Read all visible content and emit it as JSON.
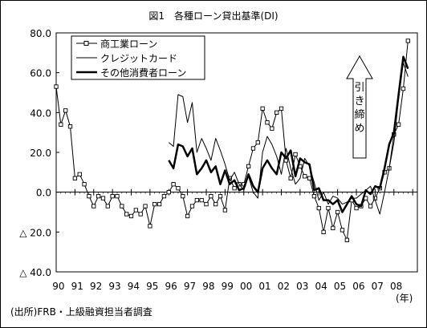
{
  "chart_data": {
    "type": "line",
    "title": "図1　各種ローン貸出基準(DI)",
    "source": "(出所)FRB・上級融資担当者調査",
    "x_unit_label": "(年)",
    "ylim": [
      -40,
      80
    ],
    "y_ticks": [
      80,
      60,
      40,
      20,
      0,
      -20,
      -40
    ],
    "y_tick_labels": [
      "80.0",
      "60.0",
      "40.0",
      "20.0",
      "0.0",
      "△ 20.0",
      "△ 40.0"
    ],
    "x_tick_labels": [
      "90",
      "91",
      "92",
      "93",
      "94",
      "95",
      "96",
      "97",
      "98",
      "99",
      "00",
      "01",
      "02",
      "03",
      "04",
      "05",
      "06",
      "07",
      "08"
    ],
    "x_range": [
      1990.0,
      2009.25
    ],
    "grid": false,
    "legend_position": "top-left",
    "annotation": "引き締め",
    "series": [
      {
        "name": "商工業ローン",
        "color": "#000000",
        "style": "thin-square-markers",
        "x": [
          1990.0,
          1990.25,
          1990.5,
          1990.75,
          1991.0,
          1991.25,
          1991.5,
          1991.75,
          1992.0,
          1992.25,
          1992.5,
          1992.75,
          1993.0,
          1993.25,
          1993.5,
          1993.75,
          1994.0,
          1994.25,
          1994.5,
          1994.75,
          1995.0,
          1995.25,
          1995.5,
          1995.75,
          1996.0,
          1996.25,
          1996.5,
          1996.75,
          1997.0,
          1997.25,
          1997.5,
          1997.75,
          1998.0,
          1998.25,
          1998.5,
          1998.75,
          1999.0,
          1999.25,
          1999.5,
          1999.75,
          2000.0,
          2000.25,
          2000.5,
          2000.75,
          2001.0,
          2001.25,
          2001.5,
          2001.75,
          2002.0,
          2002.25,
          2002.5,
          2002.75,
          2003.0,
          2003.25,
          2003.5,
          2003.75,
          2004.0,
          2004.25,
          2004.5,
          2004.75,
          2005.0,
          2005.25,
          2005.5,
          2005.75,
          2006.0,
          2006.25,
          2006.5,
          2006.75,
          2007.0,
          2007.25,
          2007.5,
          2007.75,
          2008.0,
          2008.25,
          2008.5,
          2008.75
        ],
        "values": [
          53,
          34,
          41,
          33,
          7,
          9,
          4,
          -2,
          -7,
          -2,
          -3,
          -7,
          -2,
          -2,
          -7,
          -11,
          -12,
          -9,
          -11,
          -7,
          -17,
          -6,
          -6,
          -2,
          0,
          4,
          2,
          -2,
          -12,
          -7,
          -4,
          -4,
          -6,
          -2,
          -6,
          -2,
          -9,
          7,
          2,
          4,
          4,
          13,
          22,
          25,
          42,
          35,
          32,
          40,
          42,
          16,
          7,
          19,
          13,
          8,
          7,
          -2,
          -8,
          -20,
          -8,
          -18,
          -10,
          -19,
          -24,
          -4,
          -8,
          -7,
          -3,
          -7,
          -3,
          2,
          10,
          12,
          29,
          34,
          52,
          76
        ]
      },
      {
        "name": "クレジットカード",
        "color": "#000000",
        "style": "thin",
        "x": [
          1996.0,
          1996.25,
          1996.5,
          1996.75,
          1997.0,
          1997.25,
          1997.5,
          1997.75,
          1998.0,
          1998.25,
          1998.5,
          1998.75,
          1999.0,
          1999.25,
          1999.5,
          1999.75,
          2000.0,
          2000.25,
          2000.5,
          2000.75,
          2001.0,
          2001.25,
          2001.5,
          2001.75,
          2002.0,
          2002.25,
          2002.5,
          2002.75,
          2003.0,
          2003.25,
          2003.5,
          2003.75,
          2004.0,
          2004.25,
          2004.5,
          2004.75,
          2005.0,
          2005.25,
          2005.5,
          2005.75,
          2006.0,
          2006.25,
          2006.5,
          2006.75,
          2007.0,
          2007.25,
          2007.5,
          2007.75,
          2008.0,
          2008.25,
          2008.5,
          2008.75
        ],
        "values": [
          25,
          23,
          49,
          48,
          35,
          45,
          20,
          27,
          22,
          16,
          27,
          21,
          14,
          6,
          10,
          4,
          1,
          8,
          0,
          -3,
          20,
          28,
          24,
          18,
          9,
          22,
          12,
          4,
          7,
          17,
          13,
          5,
          -4,
          0,
          -6,
          -2,
          -3,
          -6,
          -5,
          -3,
          -3,
          -1,
          1,
          3,
          -4,
          -11,
          0,
          12,
          25,
          47,
          65,
          58
        ]
      },
      {
        "name": "その他消費者ローン",
        "color": "#000000",
        "style": "thick",
        "x": [
          1996.0,
          1996.25,
          1996.5,
          1996.75,
          1997.0,
          1997.25,
          1997.5,
          1997.75,
          1998.0,
          1998.25,
          1998.5,
          1998.75,
          1999.0,
          1999.25,
          1999.5,
          1999.75,
          2000.0,
          2000.25,
          2000.5,
          2000.75,
          2001.0,
          2001.25,
          2001.5,
          2001.75,
          2002.0,
          2002.25,
          2002.5,
          2002.75,
          2003.0,
          2003.25,
          2003.5,
          2003.75,
          2004.0,
          2004.25,
          2004.5,
          2004.75,
          2005.0,
          2005.25,
          2005.5,
          2005.75,
          2006.0,
          2006.25,
          2006.5,
          2006.75,
          2007.0,
          2007.25,
          2007.5,
          2007.75,
          2008.0,
          2008.25,
          2008.5,
          2008.75
        ],
        "values": [
          16,
          12,
          24,
          23,
          18,
          22,
          9,
          12,
          16,
          10,
          13,
          4,
          11,
          4,
          6,
          1,
          2,
          9,
          3,
          0,
          12,
          16,
          12,
          9,
          20,
          17,
          21,
          8,
          17,
          15,
          14,
          1,
          2,
          -4,
          -4,
          -6,
          -4,
          -10,
          -6,
          -2,
          -6,
          -7,
          1,
          -1,
          3,
          2,
          12,
          24,
          30,
          49,
          68,
          62
        ]
      }
    ]
  }
}
